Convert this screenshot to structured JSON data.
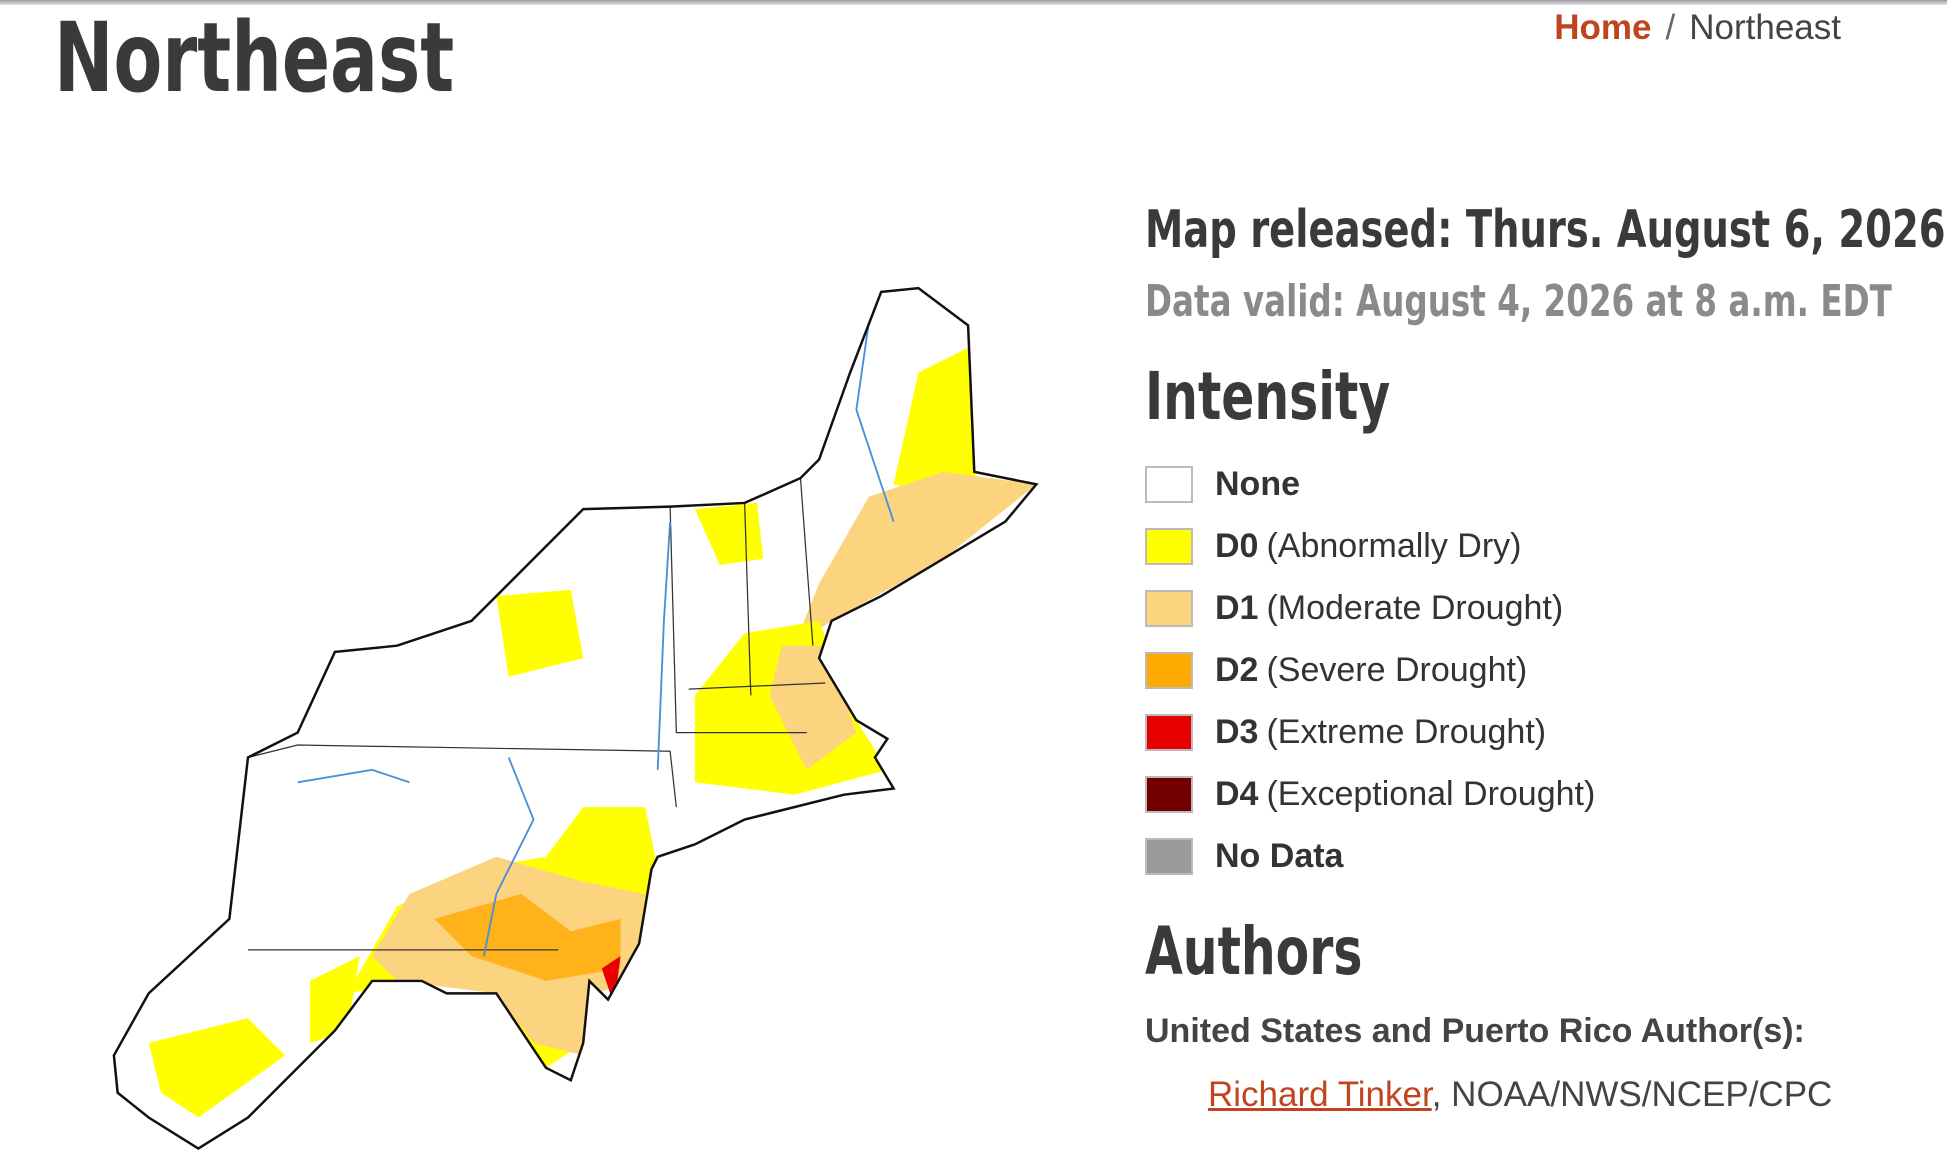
{
  "header": {
    "title": "Northeast",
    "breadcrumb": {
      "home": "Home",
      "separator": "/",
      "current": "Northeast"
    }
  },
  "map_info": {
    "released": "Map released: Thurs. August 6, 2026",
    "valid": "Data valid: August 4, 2026 at 8 a.m. EDT"
  },
  "intensity": {
    "heading": "Intensity",
    "items": [
      {
        "label": "None",
        "color": "#ffffff"
      },
      {
        "code": "D0",
        "description": "(Abnormally Dry)",
        "color": "#ffff00"
      },
      {
        "code": "D1",
        "description": "(Moderate Drought)",
        "color": "#fcd37f"
      },
      {
        "code": "D2",
        "description": "(Severe Drought)",
        "color": "#ffaa00"
      },
      {
        "code": "D3",
        "description": "(Extreme Drought)",
        "color": "#e60000"
      },
      {
        "code": "D4",
        "description": "(Exceptional Drought)",
        "color": "#730000"
      },
      {
        "label": "No Data",
        "color": "#9b9b9b"
      }
    ]
  },
  "authors": {
    "heading": "Authors",
    "subheading": "United States and Puerto Rico Author(s):",
    "name": "Richard Tinker",
    "affiliation": ", NOAA/NWS/NCEP/CPC"
  }
}
